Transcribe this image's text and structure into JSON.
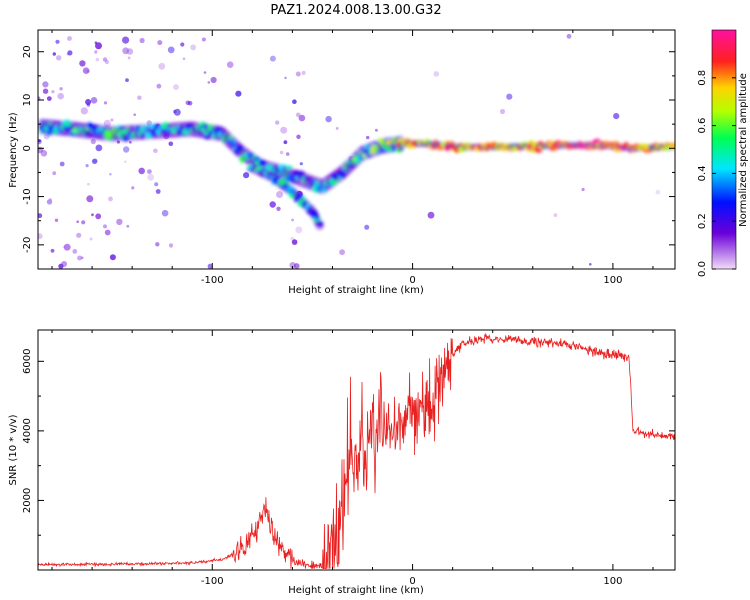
{
  "figure_title": "PAZ1.2024.008.13.00.G32",
  "chart_data": [
    {
      "type": "heatmap",
      "title": "",
      "xlabel": "Height of straight line (km)",
      "ylabel": "Frequency (Hz)",
      "xlim": [
        -187,
        131
      ],
      "ylim": [
        -25,
        24.5
      ],
      "xticks": [
        -100,
        0,
        100
      ],
      "yticks": [
        -20,
        -10,
        0,
        10,
        20
      ],
      "grid": false,
      "colorbar": {
        "label": "Normalized spectral amplitude",
        "range": [
          0,
          1
        ],
        "ticks": [
          "0.0",
          "0.2",
          "0.4",
          "0.6",
          "0.8"
        ],
        "colormap": [
          "#f2dcf8",
          "#6a00d9",
          "#0010ff",
          "#00e6ff",
          "#00ff50",
          "#b4ff00",
          "#ffd200",
          "#ff2020",
          "#ff10a0"
        ]
      },
      "ridge": [
        {
          "x": -185,
          "y": 4.5,
          "a": 0.4
        },
        {
          "x": -170,
          "y": 4.0,
          "a": 0.4
        },
        {
          "x": -150,
          "y": 3.0,
          "a": 0.4
        },
        {
          "x": -130,
          "y": 3.5,
          "a": 0.35
        },
        {
          "x": -110,
          "y": 4.0,
          "a": 0.35
        },
        {
          "x": -95,
          "y": 3.0,
          "a": 0.35
        },
        {
          "x": -85,
          "y": -1.0,
          "a": 0.35
        },
        {
          "x": -75,
          "y": -4.0,
          "a": 0.4
        },
        {
          "x": -65,
          "y": -5.0,
          "a": 0.35
        },
        {
          "x": -55,
          "y": -6.5,
          "a": 0.3
        },
        {
          "x": -45,
          "y": -8.0,
          "a": 0.35
        },
        {
          "x": -35,
          "y": -5.0,
          "a": 0.35
        },
        {
          "x": -25,
          "y": -1.0,
          "a": 0.45
        },
        {
          "x": -15,
          "y": 0.5,
          "a": 0.6
        },
        {
          "x": -5,
          "y": 1.0,
          "a": 0.7
        },
        {
          "x": 5,
          "y": 1.0,
          "a": 0.8
        },
        {
          "x": 25,
          "y": 0.2,
          "a": 0.8
        },
        {
          "x": 50,
          "y": 0.3,
          "a": 0.75
        },
        {
          "x": 75,
          "y": 0.6,
          "a": 0.9
        },
        {
          "x": 95,
          "y": 0.6,
          "a": 0.95
        },
        {
          "x": 110,
          "y": 0.0,
          "a": 0.85
        },
        {
          "x": 130,
          "y": 0.3,
          "a": 0.7
        }
      ],
      "branch": [
        {
          "x": -80,
          "y": -4.0,
          "a": 0.35
        },
        {
          "x": -70,
          "y": -6.0,
          "a": 0.3
        },
        {
          "x": -60,
          "y": -9.0,
          "a": 0.35
        },
        {
          "x": -50,
          "y": -13.0,
          "a": 0.35
        },
        {
          "x": -45,
          "y": -17.0,
          "a": 0.3
        }
      ]
    },
    {
      "type": "line",
      "title": "",
      "xlabel": "Height of straight line (km)",
      "ylabel": "SNR (10 * v/v)",
      "xlim": [
        -187,
        131
      ],
      "ylim": [
        0,
        6900
      ],
      "xticks": [
        -100,
        0,
        100
      ],
      "yticks": [
        2000,
        4000,
        6000
      ],
      "grid": false,
      "series": [
        {
          "name": "",
          "color": "#e82020",
          "x": [
            -187,
            -170,
            -150,
            -130,
            -110,
            -95,
            -85,
            -80,
            -77,
            -73,
            -70,
            -65,
            -58,
            -50,
            -45,
            -40,
            -36,
            -33,
            -30,
            -27,
            -24,
            -20,
            -17,
            -14,
            -10,
            -7,
            -3,
            0,
            3,
            6,
            10,
            13,
            16,
            20,
            25,
            30,
            35,
            40,
            45,
            55,
            65,
            75,
            85,
            90,
            95,
            100,
            105,
            108,
            109,
            110,
            111,
            112,
            115,
            120,
            125,
            131
          ],
          "y": [
            150,
            160,
            170,
            180,
            200,
            300,
            600,
            1000,
            1400,
            1700,
            1200,
            600,
            200,
            100,
            120,
            500,
            1500,
            2500,
            3200,
            3000,
            3400,
            3600,
            3800,
            3900,
            4000,
            4200,
            4400,
            4300,
            4500,
            4600,
            5000,
            5200,
            5800,
            6200,
            6500,
            6600,
            6650,
            6650,
            6650,
            6600,
            6550,
            6500,
            6400,
            6300,
            6250,
            6200,
            6150,
            6100,
            5200,
            4000,
            3900,
            4000,
            3900,
            3900,
            3850,
            3850
          ]
        }
      ]
    }
  ]
}
